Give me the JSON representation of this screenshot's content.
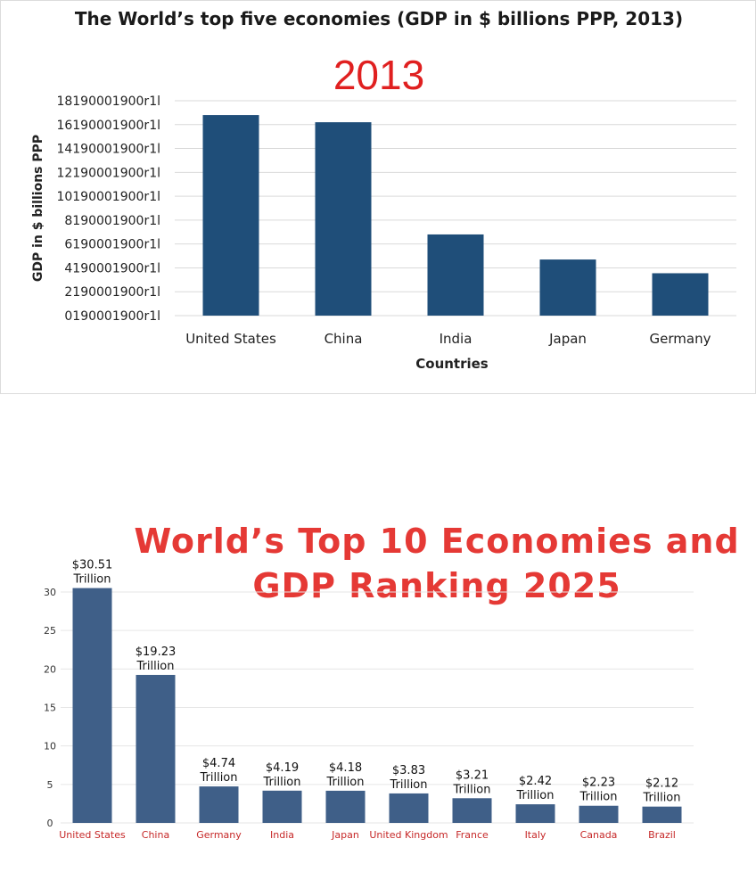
{
  "chart_data": [
    {
      "type": "bar",
      "title": "The World’s top five economies (GDP in $ billions PPP, 2013)",
      "subtitle": "2013",
      "xlabel": "Countries",
      "ylabel": "GDP in $ billions PPP",
      "categories": [
        "United States",
        "China",
        "India",
        "Japan",
        "Germany"
      ],
      "values": [
        16800,
        16200,
        6800,
        4700,
        3550
      ],
      "ylim": [
        0,
        18000
      ],
      "yticks": [
        0,
        2000,
        4000,
        6000,
        8000,
        10000,
        12000,
        14000,
        16000,
        18000
      ],
      "ytick_labels": [
        "0190001900r1l",
        "2190001900r1l",
        "4190001900r1l",
        "6190001900r1l",
        "8190001900r1l",
        "10190001900r1l",
        "12190001900r1l",
        "14190001900r1l",
        "16190001900r1l",
        "18190001900r1l"
      ],
      "grid": true,
      "bar_color": "#1f4e79"
    },
    {
      "type": "bar",
      "title": "World’s Top 10 Economies and GDP Ranking 2025",
      "categories": [
        "United States",
        "China",
        "Germany",
        "India",
        "Japan",
        "United Kingdom",
        "France",
        "Italy",
        "Canada",
        "Brazil"
      ],
      "values": [
        30.51,
        19.23,
        4.74,
        4.19,
        4.18,
        3.83,
        3.21,
        2.42,
        2.23,
        2.12
      ],
      "value_labels": [
        "$30.51",
        "$19.23",
        "$4.74",
        "$4.19",
        "$4.18",
        "$3.83",
        "$3.21",
        "$2.42",
        "$2.23",
        "$2.12"
      ],
      "unit_label": "Trillion",
      "ylim": [
        0,
        30
      ],
      "yticks": [
        0,
        5,
        10,
        15,
        20,
        25,
        30
      ],
      "ytick_labels": [
        "0",
        "5",
        "10",
        "15",
        "20",
        "25",
        "30"
      ],
      "grid": true,
      "bar_color": "#3f5f88",
      "category_color": "#c62828",
      "title_color": "#e53935"
    }
  ]
}
